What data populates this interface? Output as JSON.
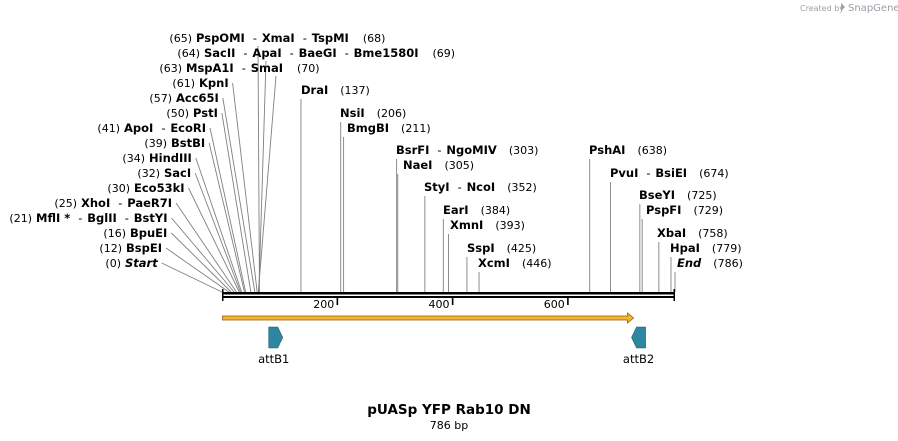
{
  "watermark": {
    "created_by": "Created by",
    "app": "SnapGene"
  },
  "map": {
    "name": "pUASp YFP Rab10 DN",
    "length_label": "786 bp",
    "length": 786,
    "ticks": [
      {
        "value": 200,
        "label": "200"
      },
      {
        "value": 400,
        "label": "400"
      },
      {
        "value": 600,
        "label": "600"
      }
    ],
    "left_sites": [
      {
        "pos": "(65)",
        "enzymes": [
          "PspOMI",
          "XmaI",
          "TspMI"
        ],
        "posnum": "(68)",
        "bp": [
          65,
          68,
          68
        ]
      },
      {
        "pos": "(64)",
        "enzymes": [
          "SacII",
          "ApaI",
          "BaeGI",
          "Bme1580I"
        ],
        "posnum": "(69)",
        "bp": [
          64,
          69,
          69,
          69
        ]
      },
      {
        "pos": "(63)",
        "enzymes": [
          "MspA1I",
          "SmaI"
        ],
        "posnum": "(70)",
        "bp": [
          63,
          70
        ]
      },
      {
        "pos": "(61)",
        "enzymes": [
          "KpnI"
        ],
        "bp": [
          61
        ]
      },
      {
        "pos": "(57)",
        "enzymes": [
          "Acc65I"
        ],
        "bp": [
          57
        ]
      },
      {
        "pos": "(50)",
        "enzymes": [
          "PstI"
        ],
        "bp": [
          50
        ]
      },
      {
        "pos": "(41)",
        "enzymes": [
          "ApoI",
          "EcoRI"
        ],
        "bp": [
          41,
          41
        ]
      },
      {
        "pos": "(39)",
        "enzymes": [
          "BstBI"
        ],
        "bp": [
          39
        ]
      },
      {
        "pos": "(34)",
        "enzymes": [
          "HindIII"
        ],
        "bp": [
          34
        ]
      },
      {
        "pos": "(32)",
        "enzymes": [
          "SacI"
        ],
        "bp": [
          32
        ]
      },
      {
        "pos": "(30)",
        "enzymes": [
          "Eco53kI"
        ],
        "bp": [
          30
        ]
      },
      {
        "pos": "(25)",
        "enzymes": [
          "XhoI",
          "PaeR7I"
        ],
        "bp": [
          25,
          25
        ]
      },
      {
        "pos": "(21)",
        "enzymes": [
          "MflI *",
          "BglII",
          "BstYI"
        ],
        "bp": [
          21,
          21,
          21
        ]
      },
      {
        "pos": "(16)",
        "enzymes": [
          "BpuEI"
        ],
        "bp": [
          16
        ]
      },
      {
        "pos": "(12)",
        "enzymes": [
          "BspEI"
        ],
        "bp": [
          12
        ]
      },
      {
        "pos": "(0)",
        "enzymes": [
          "Start"
        ],
        "bp": [
          0
        ],
        "italic": true
      }
    ],
    "right_sites": [
      {
        "enzymes": [
          "DraI"
        ],
        "pos": "(137)",
        "bp": 137
      },
      {
        "enzymes": [
          "NsiI"
        ],
        "pos": "(206)",
        "bp": 206
      },
      {
        "enzymes": [
          "BmgBI"
        ],
        "pos": "(211)",
        "bp": 211
      },
      {
        "enzymes": [
          "BsrFI",
          "NgoMIV"
        ],
        "pos": "(303)",
        "bp": 303
      },
      {
        "enzymes": [
          "NaeI"
        ],
        "pos": "(305)",
        "bp": 305
      },
      {
        "enzymes": [
          "StyI",
          "NcoI"
        ],
        "pos": "(352)",
        "bp": 352
      },
      {
        "enzymes": [
          "EarI"
        ],
        "pos": "(384)",
        "bp": 384
      },
      {
        "enzymes": [
          "XmnI"
        ],
        "pos": "(393)",
        "bp": 393
      },
      {
        "enzymes": [
          "SspI"
        ],
        "pos": "(425)",
        "bp": 425
      },
      {
        "enzymes": [
          "XcmI"
        ],
        "pos": "(446)",
        "bp": 446
      },
      {
        "enzymes": [
          "PshAI"
        ],
        "pos": "(638)",
        "bp": 638
      },
      {
        "enzymes": [
          "PvuI",
          "BsiEI"
        ],
        "pos": "(674)",
        "bp": 674
      },
      {
        "enzymes": [
          "BseYI"
        ],
        "pos": "(725)",
        "bp": 725
      },
      {
        "enzymes": [
          "PspFI"
        ],
        "pos": "(729)",
        "bp": 729
      },
      {
        "enzymes": [
          "XbaI"
        ],
        "pos": "(758)",
        "bp": 758
      },
      {
        "enzymes": [
          "HpaI"
        ],
        "pos": "(779)",
        "bp": 779
      },
      {
        "enzymes": [
          "End"
        ],
        "pos": "(786)",
        "bp": 786,
        "italic": true
      }
    ],
    "features": [
      {
        "name": "attB1",
        "start": 79,
        "end": 104,
        "direction": "forward",
        "color": "#2e86a0"
      },
      {
        "name": "attB2",
        "start": 712,
        "end": 737,
        "direction": "reverse",
        "color": "#2e86a0"
      }
    ],
    "orf": {
      "start": 1,
      "end": 714,
      "direction": "forward",
      "color": "#f2b630",
      "edge_color": "#9b5a00"
    },
    "backbone_color": "#000000"
  }
}
